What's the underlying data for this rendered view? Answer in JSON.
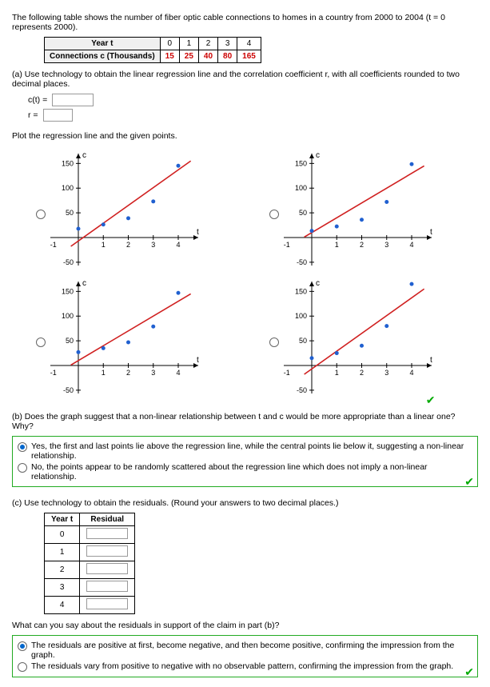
{
  "intro": "The following table shows the number of fiber optic cable connections to homes in a country from 2000 to 2004  (t = 0  represents 2000).",
  "table": {
    "rowhead1": "Year t",
    "rowhead2": "Connections c (Thousands)",
    "years": [
      "0",
      "1",
      "2",
      "3",
      "4"
    ],
    "vals": [
      "15",
      "25",
      "40",
      "80",
      "165"
    ]
  },
  "a": {
    "text": "(a) Use technology to obtain the linear regression line and the correlation coefficient r, with all coefficients rounded to two decimal places.",
    "ct": "c(t)  =",
    "r": "r  =",
    "plot_text": "Plot the regression line and the given points."
  },
  "chart": {
    "x": [
      0,
      1,
      2,
      3,
      4
    ],
    "y": [
      15,
      25,
      40,
      80,
      165
    ],
    "line_a": {
      "m": 36,
      "b": -7
    },
    "line_b": {
      "m": 30,
      "b": 10
    },
    "axis": {
      "xlabel": "t",
      "ylabel": "c",
      "yticks": [
        50,
        100,
        150
      ],
      "xticks": [
        -1,
        1,
        2,
        3,
        4
      ],
      "ymin": -60,
      "ymax": 170,
      "xmin": -1.3,
      "xmax": 4.8
    },
    "point_color": "#2060d0",
    "line_color": "#d02020",
    "selected": 3
  },
  "b": {
    "q": "(b) Does the graph suggest that a non-linear relationship between t and c would be more appropriate than a linear one? Why?",
    "o1": "Yes, the first and last points lie above the regression line, while the central points lie below it, suggesting a non-linear relationship.",
    "o2": "No, the points appear to be randomly scattered about the regression line which does not imply a non-linear relationship."
  },
  "c": {
    "q": "(c) Use technology to obtain the residuals. (Round your answers to two decimal places.)",
    "h1": "Year t",
    "h2": "Residual",
    "rows": [
      "0",
      "1",
      "2",
      "3",
      "4"
    ],
    "q2": "What can you say about the residuals in support of the claim in part (b)?",
    "o1": "The residuals are positive at first, become negative, and then become positive, confirming the impression from the graph.",
    "o2": "The residuals vary from positive to negative with no observable pattern, confirming the impression from the graph."
  }
}
